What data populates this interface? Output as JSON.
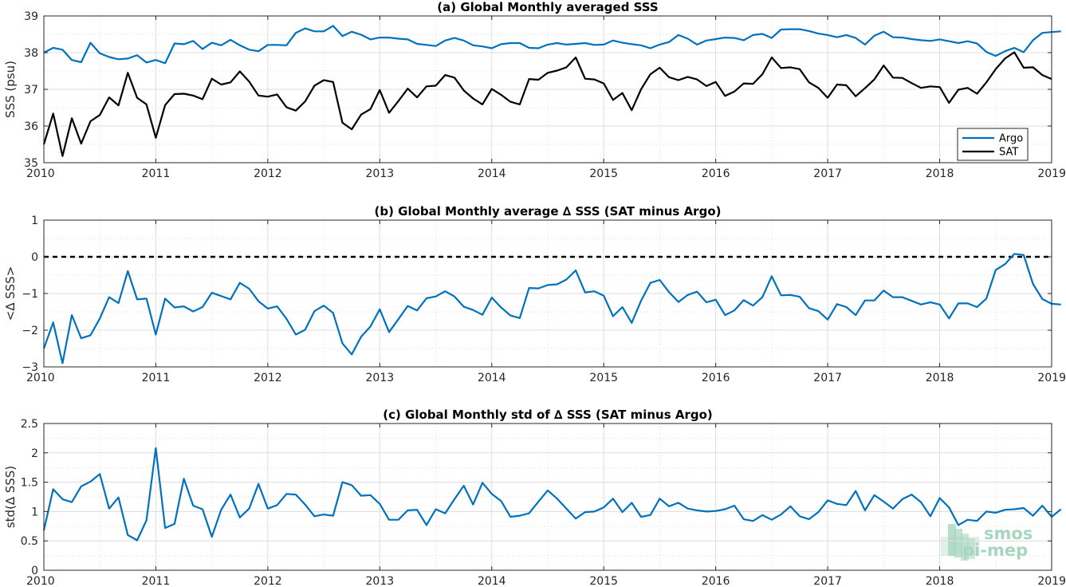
{
  "colors": {
    "argo": "#0072bd",
    "sat": "#000000",
    "grid": "#dcdcdc",
    "axis": "#262626",
    "zero_line": "#000000",
    "watermark": "#a5d6bf"
  },
  "watermark": {
    "line1": "smos",
    "line2": "pi-mep"
  },
  "chart_data": [
    {
      "type": "line",
      "title": "(a) Global Monthly averaged SSS",
      "ylabel": "SSS (psu)",
      "xlabel": "",
      "xlim": [
        2010,
        2019
      ],
      "ylim": [
        35,
        39
      ],
      "xticks": [
        2010,
        2011,
        2012,
        2013,
        2014,
        2015,
        2016,
        2017,
        2018,
        2019
      ],
      "yticks": [
        35,
        36,
        37,
        38,
        39
      ],
      "grid": true,
      "legend": "bottom-right",
      "x_start": 2010,
      "x_step_months": 1,
      "series": [
        {
          "name": "Argo",
          "values": [
            38.0,
            38.13,
            38.08,
            37.8,
            37.74,
            38.27,
            37.98,
            37.88,
            37.82,
            37.84,
            37.93,
            37.73,
            37.8,
            37.71,
            38.25,
            38.23,
            38.32,
            38.1,
            38.27,
            38.2,
            38.35,
            38.2,
            38.08,
            38.04,
            38.21,
            38.21,
            38.2,
            38.54,
            38.66,
            38.58,
            38.58,
            38.73,
            38.45,
            38.57,
            38.49,
            38.36,
            38.41,
            38.41,
            38.38,
            38.36,
            38.24,
            38.21,
            38.18,
            38.33,
            38.4,
            38.33,
            38.2,
            38.17,
            38.12,
            38.23,
            38.26,
            38.26,
            38.13,
            38.12,
            38.22,
            38.26,
            38.22,
            38.24,
            38.26,
            38.21,
            38.22,
            38.33,
            38.27,
            38.23,
            38.2,
            38.12,
            38.22,
            38.29,
            38.48,
            38.38,
            38.22,
            38.33,
            38.37,
            38.41,
            38.4,
            38.34,
            38.48,
            38.51,
            38.4,
            38.63,
            38.64,
            38.64,
            38.59,
            38.52,
            38.48,
            38.42,
            38.48,
            38.4,
            38.22,
            38.46,
            38.57,
            38.42,
            38.41,
            38.37,
            38.34,
            38.32,
            38.36,
            38.31,
            38.26,
            38.31,
            38.25,
            38.02,
            37.91,
            38.04,
            38.13,
            38.01,
            38.34,
            38.54,
            38.56,
            38.58
          ]
        },
        {
          "name": "SAT",
          "values": [
            35.5,
            36.34,
            35.18,
            36.21,
            35.52,
            36.13,
            36.3,
            36.78,
            36.56,
            37.45,
            36.77,
            36.59,
            35.68,
            36.57,
            36.87,
            36.88,
            36.83,
            36.73,
            37.29,
            37.13,
            37.19,
            37.49,
            37.21,
            36.83,
            36.8,
            36.86,
            36.51,
            36.42,
            36.67,
            37.1,
            37.25,
            37.2,
            36.09,
            35.91,
            36.31,
            36.46,
            36.98,
            36.36,
            36.68,
            37.02,
            36.78,
            37.08,
            37.1,
            37.39,
            37.32,
            36.97,
            36.75,
            36.59,
            37.01,
            36.85,
            36.66,
            36.59,
            37.28,
            37.26,
            37.45,
            37.51,
            37.6,
            37.87,
            37.29,
            37.27,
            37.16,
            36.71,
            36.9,
            36.43,
            37.0,
            37.41,
            37.59,
            37.33,
            37.25,
            37.34,
            37.27,
            37.09,
            37.2,
            36.82,
            36.94,
            37.16,
            37.15,
            37.41,
            37.87,
            37.58,
            37.6,
            37.55,
            37.19,
            37.04,
            36.77,
            37.13,
            37.11,
            36.81,
            37.03,
            37.27,
            37.65,
            37.32,
            37.31,
            37.17,
            37.04,
            37.08,
            37.06,
            36.63,
            36.99,
            37.04,
            36.88,
            37.19,
            37.55,
            37.84,
            38.01,
            37.59,
            37.6,
            37.39,
            37.28
          ]
        }
      ]
    },
    {
      "type": "line",
      "title": "(b) Global Monthly average ∆ SSS (SAT minus Argo)",
      "ylabel": "<∆ SSS>",
      "xlabel": "",
      "xlim": [
        2010,
        2019
      ],
      "ylim": [
        -3,
        1
      ],
      "xticks": [
        2010,
        2011,
        2012,
        2013,
        2014,
        2015,
        2016,
        2017,
        2018,
        2019
      ],
      "yticks": [
        -3,
        -2,
        -1,
        0,
        1
      ],
      "grid": true,
      "reference_line": 0,
      "x_start": 2010,
      "x_step_months": 1,
      "series": [
        {
          "name": "",
          "values": [
            -2.5,
            -1.79,
            -2.9,
            -1.59,
            -2.22,
            -2.14,
            -1.68,
            -1.1,
            -1.26,
            -0.39,
            -1.16,
            -1.14,
            -2.12,
            -1.14,
            -1.38,
            -1.35,
            -1.49,
            -1.37,
            -0.98,
            -1.07,
            -1.16,
            -0.71,
            -0.87,
            -1.21,
            -1.41,
            -1.35,
            -1.69,
            -2.12,
            -1.99,
            -1.48,
            -1.33,
            -1.53,
            -2.36,
            -2.66,
            -2.18,
            -1.9,
            -1.43,
            -2.05,
            -1.7,
            -1.34,
            -1.46,
            -1.13,
            -1.08,
            -0.94,
            -1.08,
            -1.36,
            -1.45,
            -1.58,
            -1.11,
            -1.38,
            -1.6,
            -1.67,
            -0.85,
            -0.86,
            -0.77,
            -0.75,
            -0.62,
            -0.37,
            -0.97,
            -0.94,
            -1.06,
            -1.62,
            -1.37,
            -1.8,
            -1.2,
            -0.71,
            -0.63,
            -0.96,
            -1.23,
            -1.04,
            -0.95,
            -1.24,
            -1.17,
            -1.59,
            -1.46,
            -1.18,
            -1.33,
            -1.1,
            -0.53,
            -1.05,
            -1.04,
            -1.09,
            -1.4,
            -1.48,
            -1.71,
            -1.29,
            -1.37,
            -1.59,
            -1.19,
            -1.19,
            -0.92,
            -1.1,
            -1.1,
            -1.2,
            -1.3,
            -1.24,
            -1.3,
            -1.68,
            -1.27,
            -1.27,
            -1.37,
            -1.14,
            -0.36,
            -0.2,
            0.08,
            0.05,
            -0.74,
            -1.15,
            -1.28,
            -1.3
          ]
        }
      ]
    },
    {
      "type": "line",
      "title": "(c) Global Monthly std of ∆ SSS (SAT minus Argo)",
      "ylabel": "std(∆ SSS)",
      "xlabel": "",
      "xlim": [
        2010,
        2019
      ],
      "ylim": [
        0,
        2.5
      ],
      "xticks": [
        2010,
        2011,
        2012,
        2013,
        2014,
        2015,
        2016,
        2017,
        2018,
        2019
      ],
      "yticks": [
        0,
        0.5,
        1,
        1.5,
        2,
        2.5
      ],
      "ytick_labels": [
        "0",
        "0.5",
        "1",
        "1.5",
        "2",
        "2.5"
      ],
      "grid": true,
      "x_start": 2010,
      "x_step_months": 1,
      "series": [
        {
          "name": "",
          "values": [
            0.68,
            1.38,
            1.21,
            1.16,
            1.43,
            1.51,
            1.64,
            1.05,
            1.24,
            0.6,
            0.51,
            0.85,
            2.08,
            0.72,
            0.79,
            1.56,
            1.1,
            1.04,
            0.57,
            1.03,
            1.29,
            0.9,
            1.05,
            1.47,
            1.05,
            1.11,
            1.3,
            1.29,
            1.12,
            0.92,
            0.95,
            0.93,
            1.5,
            1.45,
            1.27,
            1.28,
            1.13,
            0.86,
            0.86,
            1.02,
            1.03,
            0.77,
            1.04,
            0.97,
            1.21,
            1.44,
            1.12,
            1.49,
            1.3,
            1.18,
            0.91,
            0.93,
            0.97,
            1.17,
            1.36,
            1.22,
            1.05,
            0.88,
            0.99,
            1.0,
            1.07,
            1.22,
            0.99,
            1.15,
            0.91,
            0.94,
            1.22,
            1.09,
            1.15,
            1.05,
            1.02,
            1.0,
            1.01,
            1.04,
            1.1,
            0.87,
            0.84,
            0.94,
            0.86,
            0.95,
            1.09,
            0.92,
            0.87,
            0.99,
            1.19,
            1.13,
            1.11,
            1.35,
            1.02,
            1.28,
            1.17,
            1.05,
            1.21,
            1.29,
            1.16,
            0.92,
            1.23,
            1.07,
            0.77,
            0.86,
            0.84,
            1.0,
            0.98,
            1.03,
            1.04,
            1.06,
            0.93,
            1.1,
            0.91,
            1.04
          ]
        }
      ]
    }
  ]
}
